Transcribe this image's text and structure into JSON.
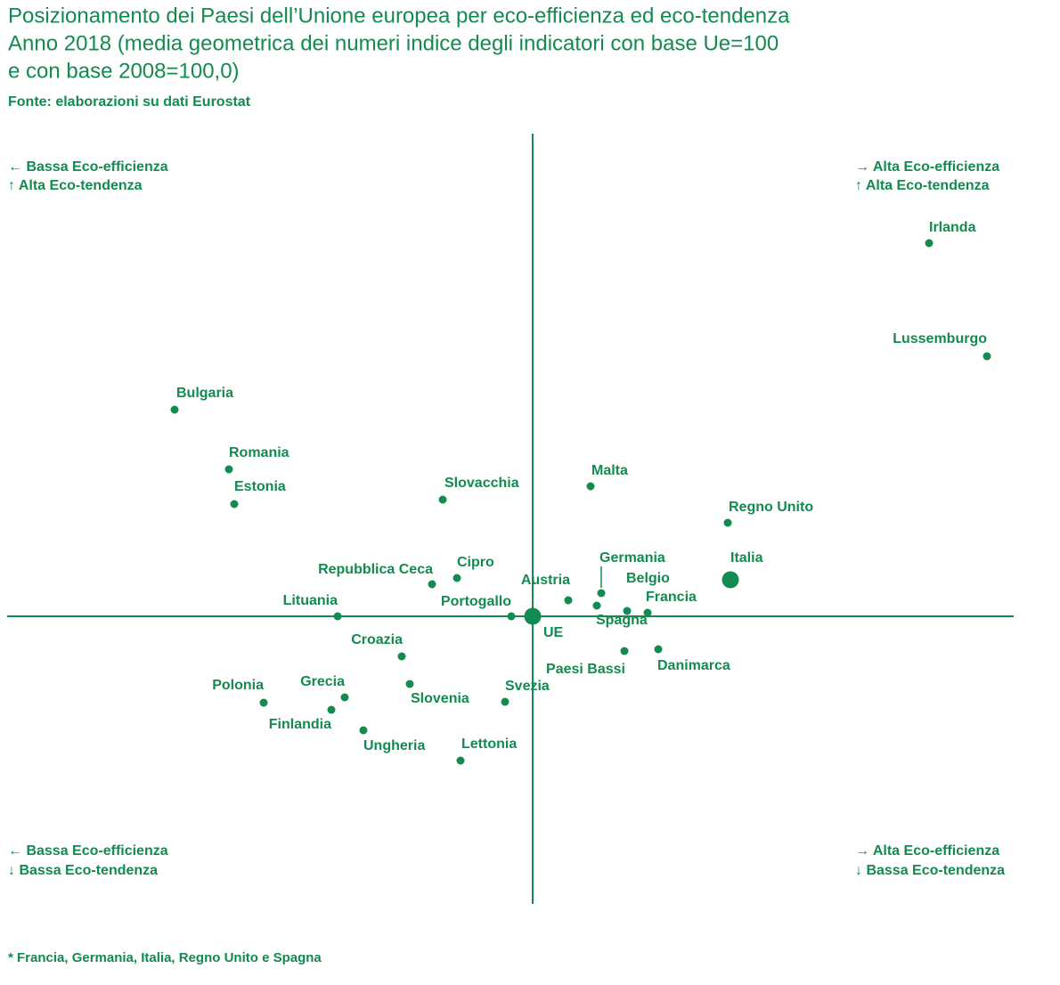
{
  "chart_data": {
    "type": "scatter",
    "title": [
      "Posizionamento dei Paesi dell’Unione europea per eco-efficienza ed eco-tendenza",
      "Anno 2018 (media geometrica dei numeri indice degli indicatori con base Ue=100",
      "e con base 2008=100,0)"
    ],
    "subtitle": "Fonte: elaborazioni su dati Eurostat",
    "quadrants": {
      "top_left": [
        "← Bassa Eco-efficienza",
        "↑ Alta Eco-tendenza"
      ],
      "top_right": [
        "→ Alta Eco-efficienza",
        "↑ Alta Eco-tendenza"
      ],
      "bottom_left": [
        "← Bassa Eco-efficienza",
        "↓ Bassa Eco-tendenza"
      ],
      "bottom_right": [
        "→ Alta Eco-efficienza",
        "↓ Bassa Eco-tendenza"
      ]
    },
    "footnote": "* Francia, Germania, Italia, Regno Unito e Spagna",
    "color": "#138a50",
    "categories": [
      "Irlanda",
      "Lussemburgo",
      "Bulgaria",
      "Romania",
      "Estonia",
      "Slovacchia",
      "Malta",
      "Regno Unito",
      "Italia",
      "Repubblica Ceca",
      "Cipro",
      "Austria",
      "Germania",
      "Spagna",
      "Belgio",
      "Francia",
      "Lituania",
      "Portogallo",
      "UE",
      "Croazia",
      "Paesi Bassi",
      "Danimarca",
      "Polonia",
      "Grecia",
      "Finlandia",
      "Slovenia",
      "Svezia",
      "Ungheria",
      "Lettonia"
    ],
    "x": [
      144.5,
      151.0,
      59.8,
      65.9,
      66.5,
      89.9,
      106.5,
      121.9,
      122.2,
      88.7,
      91.5,
      104.0,
      107.7,
      107.2,
      110.6,
      112.9,
      78.1,
      97.6,
      100,
      85.3,
      110.3,
      114.1,
      69.8,
      78.9,
      77.4,
      86.2,
      96.9,
      81.0,
      91.9
    ],
    "values": [
      141.9,
      129.2,
      123.2,
      116.5,
      112.6,
      113.1,
      114.6,
      110.5,
      104.1,
      103.6,
      104.3,
      101.8,
      102.6,
      101.2,
      100.6,
      100.4,
      100.0,
      100.0,
      100,
      95.5,
      96.1,
      96.3,
      90.3,
      90.9,
      89.5,
      92.4,
      90.4,
      87.2,
      83.8
    ],
    "xlim": [
      41,
      154
    ],
    "ylim": [
      67.7,
      154.2
    ]
  }
}
